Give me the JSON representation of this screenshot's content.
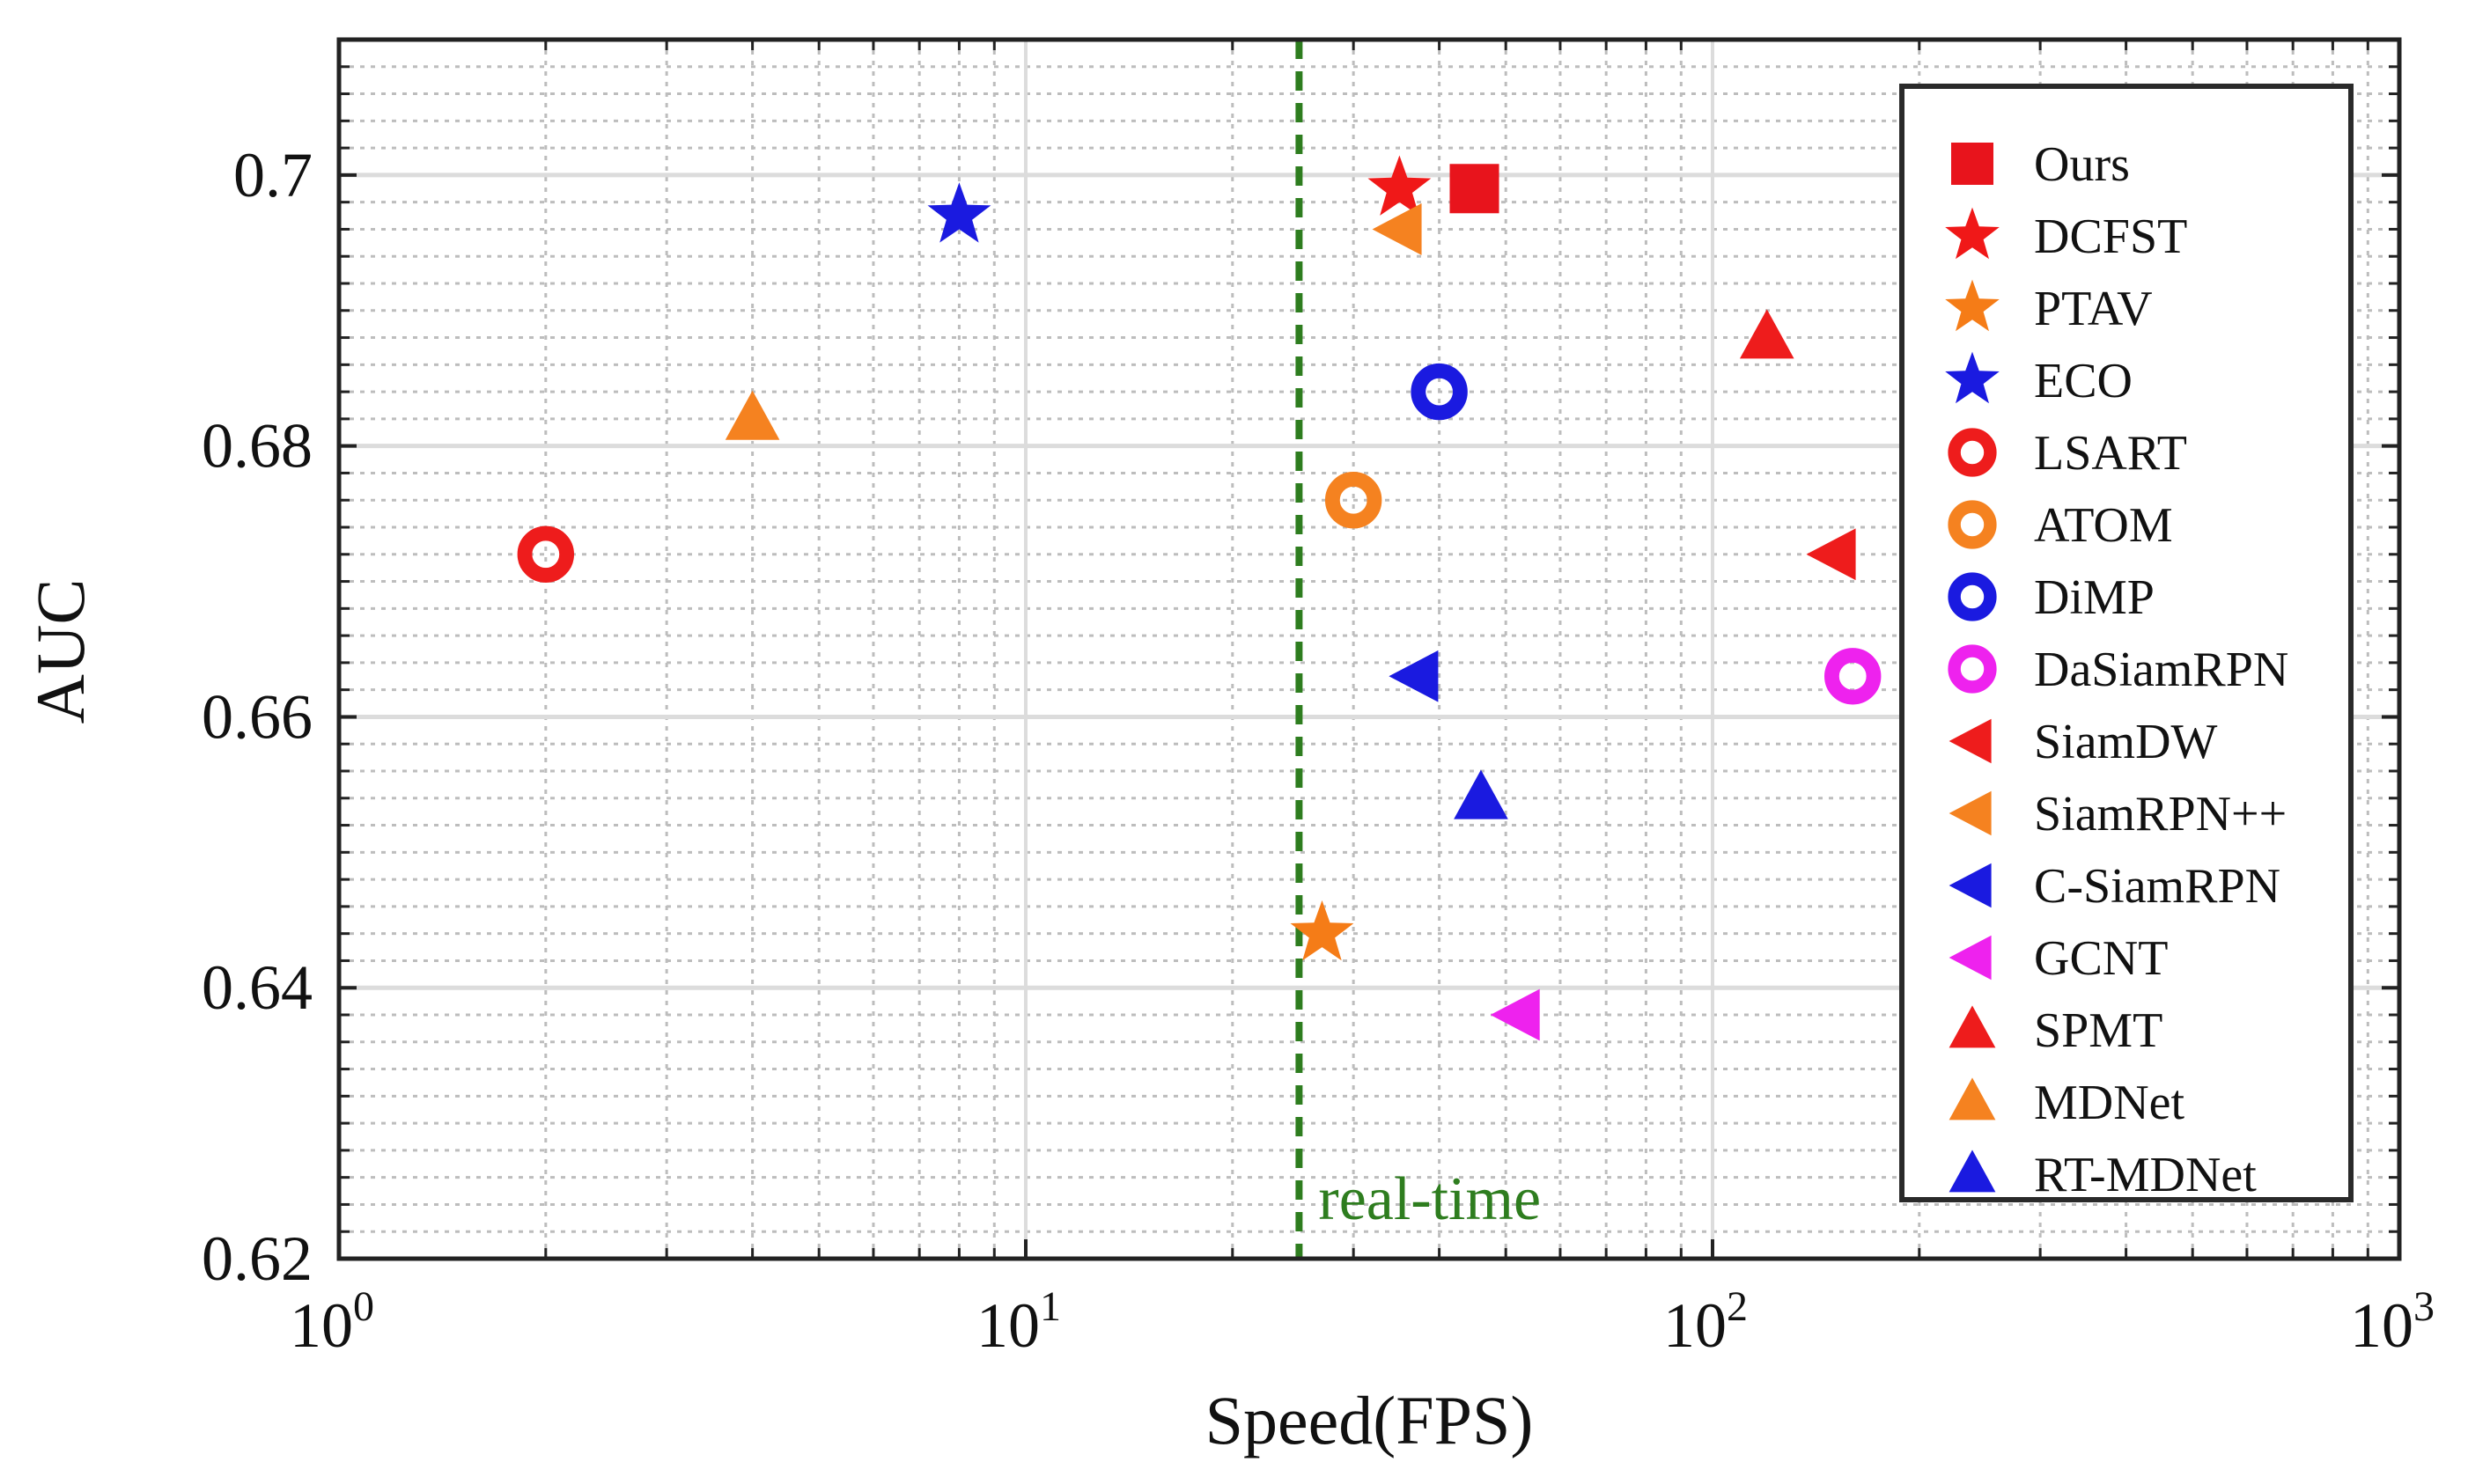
{
  "chart_data": {
    "type": "scatter",
    "xscale": "log",
    "xlabel": "Speed(FPS)",
    "ylabel": "AUC",
    "xlim": [
      1,
      1000
    ],
    "ylim": [
      0.62,
      0.71
    ],
    "x_ticks": [
      {
        "value": 1,
        "base": "10",
        "exp": "0"
      },
      {
        "value": 10,
        "base": "10",
        "exp": "1"
      },
      {
        "value": 100,
        "base": "10",
        "exp": "2"
      },
      {
        "value": 1000,
        "base": "10",
        "exp": "3"
      }
    ],
    "y_ticks": [
      {
        "value": 0.62,
        "label": "0.62"
      },
      {
        "value": 0.64,
        "label": "0.64"
      },
      {
        "value": 0.66,
        "label": "0.66"
      },
      {
        "value": 0.68,
        "label": "0.68"
      },
      {
        "value": 0.7,
        "label": "0.7"
      }
    ],
    "grid": true,
    "legend_position": "right",
    "realtime_line": {
      "x": 25,
      "label": "real-time",
      "color": "#2e7d1f"
    },
    "series": [
      {
        "name": "Ours",
        "marker": "square",
        "color": "#e8141c",
        "x": 45,
        "y": 0.699
      },
      {
        "name": "DCFST",
        "marker": "star",
        "color": "#f01818",
        "x": 35,
        "y": 0.699
      },
      {
        "name": "PTAV",
        "marker": "star",
        "color": "#f57c17",
        "x": 27,
        "y": 0.644
      },
      {
        "name": "ECO",
        "marker": "star",
        "color": "#1a1ae0",
        "x": 8,
        "y": 0.697
      },
      {
        "name": "LSART",
        "marker": "circle",
        "color": "#ee1c1c",
        "x": 2,
        "y": 0.672
      },
      {
        "name": "ATOM",
        "marker": "circle",
        "color": "#f58220",
        "x": 30,
        "y": 0.676
      },
      {
        "name": "DiMP",
        "marker": "circle",
        "color": "#1a1ae0",
        "x": 40,
        "y": 0.684
      },
      {
        "name": "DaSiamRPN",
        "marker": "circle",
        "color": "#ee22ee",
        "x": 160,
        "y": 0.663
      },
      {
        "name": "SiamDW",
        "marker": "triangle-left",
        "color": "#ee1c1c",
        "x": 150,
        "y": 0.672
      },
      {
        "name": "SiamRPN++",
        "marker": "triangle-left",
        "color": "#f58220",
        "x": 35,
        "y": 0.696
      },
      {
        "name": "C-SiamRPN",
        "marker": "triangle-left",
        "color": "#1a1ae0",
        "x": 37,
        "y": 0.663
      },
      {
        "name": "GCNT",
        "marker": "triangle-left",
        "color": "#ee22ee",
        "x": 52,
        "y": 0.638
      },
      {
        "name": "SPMT",
        "marker": "triangle-up",
        "color": "#ee1c1c",
        "x": 120,
        "y": 0.688
      },
      {
        "name": "MDNet",
        "marker": "triangle-up",
        "color": "#f58220",
        "x": 4,
        "y": 0.682
      },
      {
        "name": "RT-MDNet",
        "marker": "triangle-up",
        "color": "#1a1ae0",
        "x": 46,
        "y": 0.654
      }
    ],
    "colors": {
      "ours_label": "#e8141c",
      "axis": "#111111",
      "grid": "#dcdcdc",
      "minor_grid": "#bdbdbd"
    }
  }
}
